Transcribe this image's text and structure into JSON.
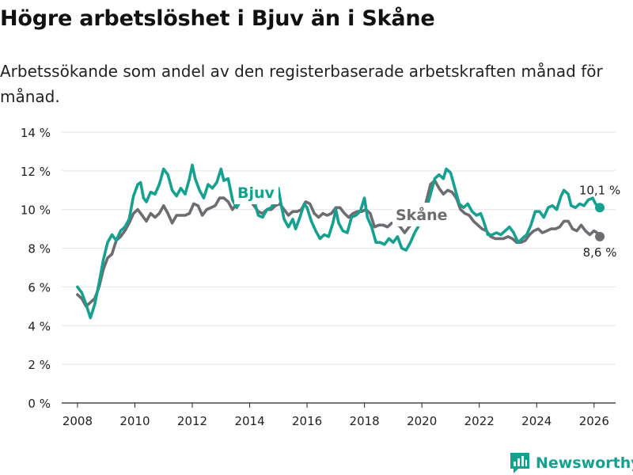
{
  "header": {
    "title": "Högre arbetslöshet i Bjuv än i Skåne",
    "subtitle": "Arbetssökande som andel av den registerbaserade arbetskraften månad för månad."
  },
  "brand": {
    "name": "Newsworthy",
    "icon": "bar-chart-logo-icon",
    "color": "#16a08f"
  },
  "chart_data": {
    "type": "line",
    "title": "Högre arbetslöshet i Bjuv än i Skåne",
    "xlabel": "",
    "ylabel": "",
    "xlim": [
      2007.45,
      2026.75
    ],
    "ylim": [
      0,
      14
    ],
    "x_ticks": [
      2008,
      2010,
      2012,
      2014,
      2016,
      2018,
      2020,
      2022,
      2024,
      2026
    ],
    "x_tick_labels": [
      "2008",
      "2010",
      "2012",
      "2014",
      "2016",
      "2018",
      "2020",
      "2022",
      "2024",
      "2026"
    ],
    "y_ticks": [
      0,
      2,
      4,
      6,
      8,
      10,
      12,
      14
    ],
    "y_tick_labels": [
      "0 %",
      "2 %",
      "4 %",
      "6 %",
      "8 %",
      "10 %",
      "12 %",
      "14 %"
    ],
    "grid": "horizontal",
    "series": [
      {
        "name": "Bjuv",
        "label": "Bjuv",
        "color": "#16a08f",
        "end_label": "10,1 %",
        "points": [
          [
            2008.0,
            6.0
          ],
          [
            2008.15,
            5.7
          ],
          [
            2008.3,
            5.1
          ],
          [
            2008.45,
            4.4
          ],
          [
            2008.6,
            5.1
          ],
          [
            2008.75,
            6.2
          ],
          [
            2008.9,
            7.4
          ],
          [
            2009.05,
            8.3
          ],
          [
            2009.2,
            8.7
          ],
          [
            2009.35,
            8.4
          ],
          [
            2009.5,
            8.9
          ],
          [
            2009.65,
            9.1
          ],
          [
            2009.8,
            9.5
          ],
          [
            2009.95,
            10.7
          ],
          [
            2010.1,
            11.3
          ],
          [
            2010.2,
            11.4
          ],
          [
            2010.3,
            10.6
          ],
          [
            2010.4,
            10.4
          ],
          [
            2010.55,
            10.9
          ],
          [
            2010.7,
            10.8
          ],
          [
            2010.85,
            11.3
          ],
          [
            2011.0,
            12.1
          ],
          [
            2011.15,
            11.8
          ],
          [
            2011.3,
            11.0
          ],
          [
            2011.45,
            10.7
          ],
          [
            2011.6,
            11.1
          ],
          [
            2011.75,
            10.8
          ],
          [
            2011.9,
            11.6
          ],
          [
            2012.0,
            12.3
          ],
          [
            2012.1,
            11.6
          ],
          [
            2012.25,
            11.0
          ],
          [
            2012.4,
            10.6
          ],
          [
            2012.55,
            11.3
          ],
          [
            2012.7,
            11.1
          ],
          [
            2012.85,
            11.4
          ],
          [
            2013.0,
            12.1
          ],
          [
            2013.1,
            11.5
          ],
          [
            2013.25,
            11.6
          ],
          [
            2013.4,
            10.5
          ],
          [
            2013.55,
            10.1
          ],
          [
            2013.7,
            10.5
          ],
          [
            2013.85,
            10.7
          ],
          [
            2014.0,
            10.6
          ],
          [
            2014.15,
            10.5
          ],
          [
            2014.3,
            9.7
          ],
          [
            2014.45,
            9.6
          ],
          [
            2014.6,
            10.0
          ],
          [
            2014.75,
            10.1
          ],
          [
            2014.9,
            10.5
          ],
          [
            2015.0,
            11.1
          ],
          [
            2015.1,
            10.2
          ],
          [
            2015.2,
            9.5
          ],
          [
            2015.35,
            9.1
          ],
          [
            2015.5,
            9.5
          ],
          [
            2015.6,
            9.0
          ],
          [
            2015.75,
            9.6
          ],
          [
            2015.9,
            10.3
          ],
          [
            2016.0,
            10.1
          ],
          [
            2016.15,
            9.4
          ],
          [
            2016.3,
            8.9
          ],
          [
            2016.45,
            8.5
          ],
          [
            2016.6,
            8.7
          ],
          [
            2016.75,
            8.6
          ],
          [
            2016.9,
            9.3
          ],
          [
            2017.0,
            10.0
          ],
          [
            2017.1,
            9.3
          ],
          [
            2017.25,
            8.9
          ],
          [
            2017.4,
            8.8
          ],
          [
            2017.55,
            9.6
          ],
          [
            2017.7,
            9.7
          ],
          [
            2017.85,
            9.9
          ],
          [
            2018.0,
            10.6
          ],
          [
            2018.1,
            9.6
          ],
          [
            2018.25,
            9.1
          ],
          [
            2018.4,
            8.3
          ],
          [
            2018.55,
            8.3
          ],
          [
            2018.7,
            8.2
          ],
          [
            2018.85,
            8.5
          ],
          [
            2019.0,
            8.3
          ],
          [
            2019.15,
            8.6
          ],
          [
            2019.3,
            8.0
          ],
          [
            2019.45,
            7.9
          ],
          [
            2019.6,
            8.3
          ],
          [
            2019.75,
            8.8
          ],
          [
            2019.9,
            9.2
          ],
          [
            2020.0,
            9.5
          ],
          [
            2020.15,
            10.0
          ],
          [
            2020.3,
            10.8
          ],
          [
            2020.45,
            11.6
          ],
          [
            2020.6,
            11.8
          ],
          [
            2020.75,
            11.6
          ],
          [
            2020.85,
            12.1
          ],
          [
            2021.0,
            11.9
          ],
          [
            2021.15,
            11.1
          ],
          [
            2021.3,
            10.3
          ],
          [
            2021.45,
            10.1
          ],
          [
            2021.6,
            10.3
          ],
          [
            2021.75,
            9.9
          ],
          [
            2021.9,
            9.7
          ],
          [
            2022.05,
            9.8
          ],
          [
            2022.15,
            9.4
          ],
          [
            2022.3,
            8.7
          ],
          [
            2022.45,
            8.7
          ],
          [
            2022.6,
            8.8
          ],
          [
            2022.75,
            8.7
          ],
          [
            2022.9,
            8.9
          ],
          [
            2023.05,
            9.1
          ],
          [
            2023.2,
            8.8
          ],
          [
            2023.35,
            8.3
          ],
          [
            2023.5,
            8.5
          ],
          [
            2023.65,
            8.7
          ],
          [
            2023.8,
            9.2
          ],
          [
            2023.95,
            9.9
          ],
          [
            2024.1,
            9.9
          ],
          [
            2024.25,
            9.6
          ],
          [
            2024.4,
            10.1
          ],
          [
            2024.55,
            10.2
          ],
          [
            2024.7,
            10.0
          ],
          [
            2024.85,
            10.7
          ],
          [
            2024.95,
            11.0
          ],
          [
            2025.1,
            10.8
          ],
          [
            2025.2,
            10.2
          ],
          [
            2025.35,
            10.1
          ],
          [
            2025.5,
            10.3
          ],
          [
            2025.65,
            10.2
          ],
          [
            2025.8,
            10.5
          ],
          [
            2025.95,
            10.6
          ],
          [
            2026.05,
            10.3
          ],
          [
            2026.2,
            10.1
          ]
        ]
      },
      {
        "name": "Skåne",
        "label": "Skåne",
        "color": "#6d6c71",
        "end_label": "8,6 %",
        "points": [
          [
            2008.0,
            5.6
          ],
          [
            2008.15,
            5.4
          ],
          [
            2008.3,
            5.0
          ],
          [
            2008.45,
            5.2
          ],
          [
            2008.6,
            5.4
          ],
          [
            2008.75,
            6.0
          ],
          [
            2008.9,
            6.9
          ],
          [
            2009.05,
            7.5
          ],
          [
            2009.2,
            7.7
          ],
          [
            2009.35,
            8.4
          ],
          [
            2009.5,
            8.6
          ],
          [
            2009.65,
            8.9
          ],
          [
            2009.8,
            9.3
          ],
          [
            2009.95,
            9.8
          ],
          [
            2010.1,
            10.0
          ],
          [
            2010.25,
            9.7
          ],
          [
            2010.4,
            9.4
          ],
          [
            2010.55,
            9.8
          ],
          [
            2010.7,
            9.6
          ],
          [
            2010.85,
            9.8
          ],
          [
            2011.0,
            10.2
          ],
          [
            2011.15,
            9.8
          ],
          [
            2011.3,
            9.3
          ],
          [
            2011.45,
            9.7
          ],
          [
            2011.6,
            9.7
          ],
          [
            2011.75,
            9.7
          ],
          [
            2011.9,
            9.8
          ],
          [
            2012.05,
            10.3
          ],
          [
            2012.2,
            10.2
          ],
          [
            2012.35,
            9.7
          ],
          [
            2012.5,
            10.0
          ],
          [
            2012.65,
            10.1
          ],
          [
            2012.8,
            10.2
          ],
          [
            2012.95,
            10.6
          ],
          [
            2013.1,
            10.6
          ],
          [
            2013.25,
            10.4
          ],
          [
            2013.4,
            10.0
          ],
          [
            2013.55,
            10.3
          ],
          [
            2013.7,
            10.4
          ],
          [
            2013.85,
            10.4
          ],
          [
            2014.0,
            10.5
          ],
          [
            2014.15,
            10.2
          ],
          [
            2014.3,
            9.9
          ],
          [
            2014.45,
            9.8
          ],
          [
            2014.6,
            10.0
          ],
          [
            2014.75,
            10.0
          ],
          [
            2014.9,
            10.2
          ],
          [
            2015.05,
            10.3
          ],
          [
            2015.2,
            10.0
          ],
          [
            2015.35,
            9.7
          ],
          [
            2015.5,
            9.9
          ],
          [
            2015.65,
            9.9
          ],
          [
            2015.8,
            10.0
          ],
          [
            2015.95,
            10.4
          ],
          [
            2016.1,
            10.3
          ],
          [
            2016.25,
            9.8
          ],
          [
            2016.4,
            9.6
          ],
          [
            2016.55,
            9.8
          ],
          [
            2016.7,
            9.7
          ],
          [
            2016.85,
            9.8
          ],
          [
            2017.0,
            10.1
          ],
          [
            2017.15,
            10.1
          ],
          [
            2017.3,
            9.8
          ],
          [
            2017.45,
            9.6
          ],
          [
            2017.6,
            9.8
          ],
          [
            2017.75,
            9.9
          ],
          [
            2017.9,
            9.9
          ],
          [
            2018.05,
            10.0
          ],
          [
            2018.2,
            9.8
          ],
          [
            2018.35,
            9.1
          ],
          [
            2018.5,
            9.2
          ],
          [
            2018.65,
            9.2
          ],
          [
            2018.8,
            9.1
          ],
          [
            2018.95,
            9.3
          ],
          [
            2019.1,
            9.3
          ],
          [
            2019.25,
            9.1
          ],
          [
            2019.4,
            8.8
          ],
          [
            2019.55,
            9.1
          ],
          [
            2019.7,
            9.3
          ],
          [
            2019.85,
            9.4
          ],
          [
            2020.0,
            9.5
          ],
          [
            2020.15,
            10.4
          ],
          [
            2020.3,
            11.3
          ],
          [
            2020.45,
            11.5
          ],
          [
            2020.6,
            11.1
          ],
          [
            2020.75,
            10.8
          ],
          [
            2020.9,
            11.0
          ],
          [
            2021.05,
            10.9
          ],
          [
            2021.2,
            10.6
          ],
          [
            2021.35,
            10.0
          ],
          [
            2021.5,
            9.8
          ],
          [
            2021.65,
            9.7
          ],
          [
            2021.8,
            9.4
          ],
          [
            2021.95,
            9.2
          ],
          [
            2022.1,
            9.0
          ],
          [
            2022.25,
            8.9
          ],
          [
            2022.4,
            8.6
          ],
          [
            2022.55,
            8.5
          ],
          [
            2022.7,
            8.5
          ],
          [
            2022.85,
            8.5
          ],
          [
            2023.0,
            8.6
          ],
          [
            2023.15,
            8.5
          ],
          [
            2023.3,
            8.3
          ],
          [
            2023.45,
            8.3
          ],
          [
            2023.6,
            8.4
          ],
          [
            2023.75,
            8.7
          ],
          [
            2023.9,
            8.9
          ],
          [
            2024.05,
            9.0
          ],
          [
            2024.2,
            8.8
          ],
          [
            2024.35,
            8.9
          ],
          [
            2024.5,
            9.0
          ],
          [
            2024.65,
            9.0
          ],
          [
            2024.8,
            9.1
          ],
          [
            2024.95,
            9.4
          ],
          [
            2025.1,
            9.4
          ],
          [
            2025.25,
            9.0
          ],
          [
            2025.4,
            8.9
          ],
          [
            2025.55,
            9.2
          ],
          [
            2025.7,
            8.9
          ],
          [
            2025.85,
            8.7
          ],
          [
            2026.0,
            8.9
          ],
          [
            2026.1,
            8.8
          ],
          [
            2026.2,
            8.6
          ]
        ]
      }
    ]
  }
}
